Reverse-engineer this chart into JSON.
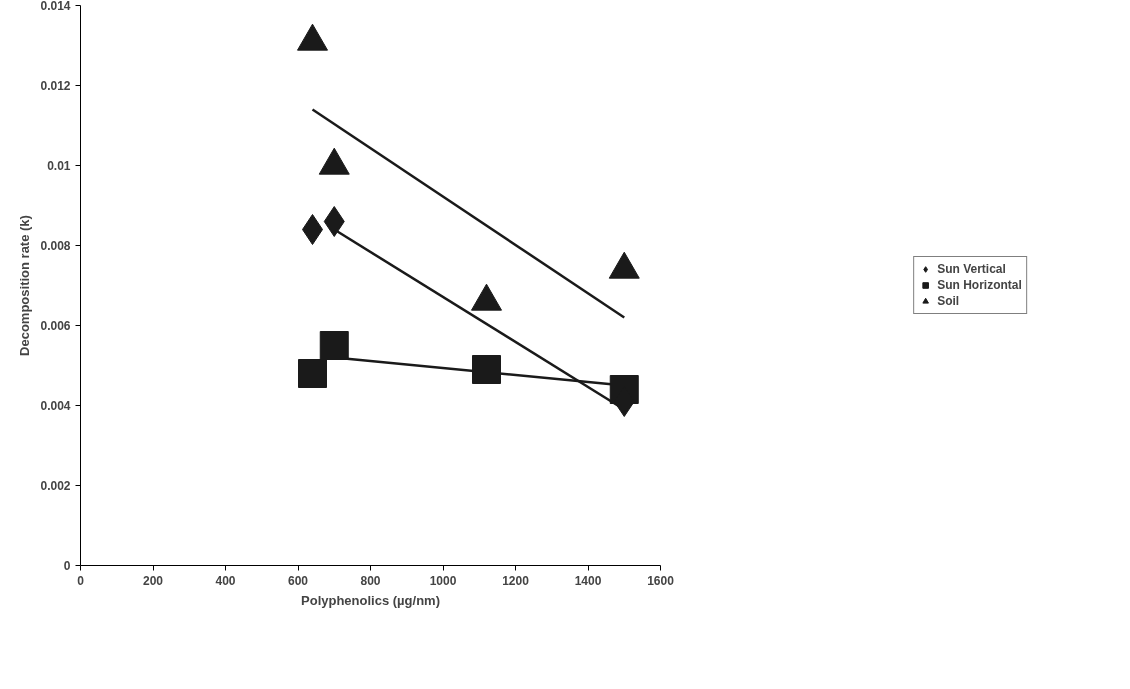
{
  "chart_data": {
    "type": "scatter",
    "xlabel": "Polyphenolics (µg/nm)",
    "ylabel": "Decomposition rate (k)",
    "xlim": [
      0,
      1600
    ],
    "xticks": [
      0,
      200,
      400,
      600,
      800,
      1000,
      1200,
      1400,
      1600
    ],
    "ylim": [
      0,
      0.014
    ],
    "yticks": [
      0,
      0.002,
      0.004,
      0.006,
      0.008,
      0.01,
      0.012,
      0.014
    ],
    "grid": false,
    "legend": "right",
    "series": [
      {
        "name": "Sun Vertical",
        "color": "#1a1a1a",
        "marker": "diamond",
        "x": [
          640,
          700,
          1500
        ],
        "values": [
          0.0084,
          0.0086,
          0.0041
        ]
      },
      {
        "name": "Sun Horizontal",
        "color": "#1a1a1a",
        "marker": "square",
        "x": [
          640,
          700,
          1120,
          1500
        ],
        "values": [
          0.0048,
          0.0055,
          0.0049,
          0.0044
        ]
      },
      {
        "name": "Soil",
        "color": "#1a1a1a",
        "marker": "triangle",
        "x": [
          640,
          700,
          1120,
          1500
        ],
        "values": [
          0.0131,
          0.01,
          0.0066,
          0.0074
        ]
      },
      {
        "type": "line",
        "color": "#1a1a1a",
        "x": [
          700,
          1500
        ],
        "values": [
          0.0084,
          0.0039
        ]
      },
      {
        "type": "line",
        "color": "#1a1a1a",
        "x": [
          700,
          1500
        ],
        "values": [
          0.0052,
          0.0045
        ]
      },
      {
        "type": "line",
        "color": "#1a1a1a",
        "x": [
          640,
          1500
        ],
        "values": [
          0.0114,
          0.0062
        ]
      }
    ]
  }
}
